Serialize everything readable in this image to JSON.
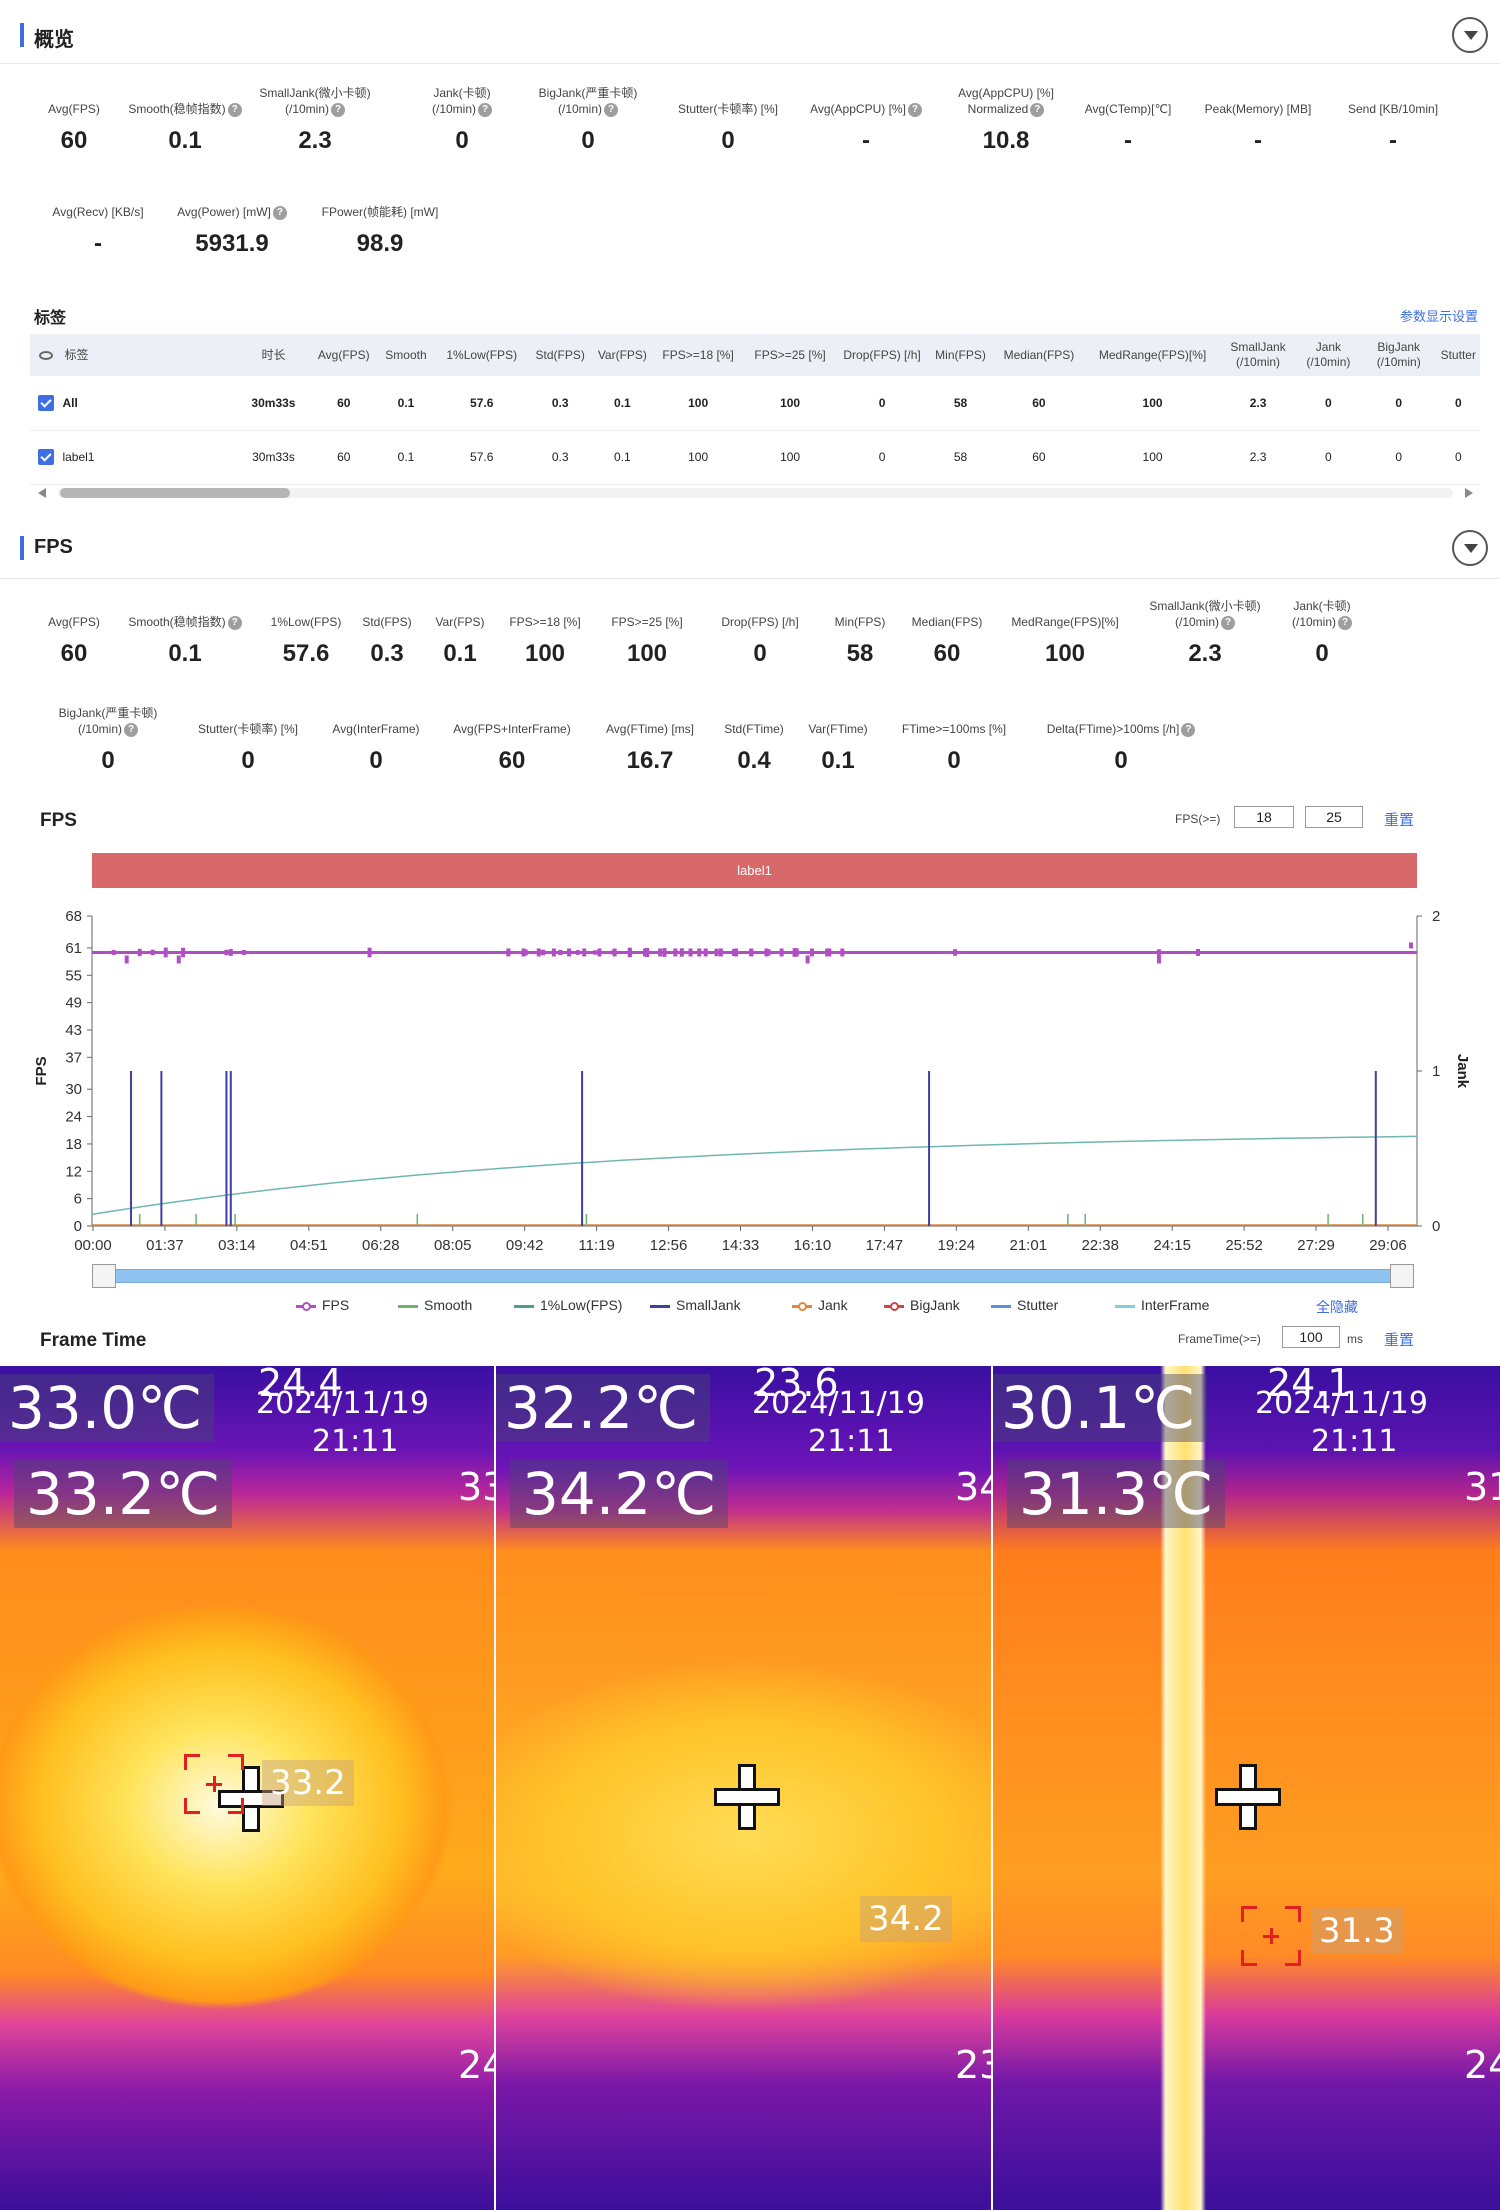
{
  "overview": {
    "title": "概览",
    "metrics_row1": [
      {
        "label": "Avg(FPS)",
        "value": "60",
        "help": false
      },
      {
        "label": "Smooth(稳帧指数)",
        "value": "0.1",
        "help": true
      },
      {
        "label": "SmallJank(微小卡顿)\n(/10min)",
        "value": "2.3",
        "help": true
      },
      {
        "label": "Jank(卡顿)\n(/10min)",
        "value": "0",
        "help": true
      },
      {
        "label": "BigJank(严重卡顿)\n(/10min)",
        "value": "0",
        "help": true
      },
      {
        "label": "Stutter(卡顿率) [%]",
        "value": "0",
        "help": false
      },
      {
        "label": "Avg(AppCPU) [%]",
        "value": "-",
        "help": true
      },
      {
        "label": "Avg(AppCPU) [%]\nNormalized",
        "value": "10.8",
        "help": true
      },
      {
        "label": "Avg(CTemp)[℃]",
        "value": "-",
        "help": false
      },
      {
        "label": "Peak(Memory) [MB]",
        "value": "-",
        "help": false
      },
      {
        "label": "Send [KB/10min]",
        "value": "-",
        "help": false
      }
    ],
    "metrics_row2": [
      {
        "label": "Avg(Recv) [KB/s]",
        "value": "-",
        "help": false
      },
      {
        "label": "Avg(Power) [mW]",
        "value": "5931.9",
        "help": true
      },
      {
        "label": "FPower(帧能耗) [mW]",
        "value": "98.9",
        "help": false
      }
    ]
  },
  "tags": {
    "title": "标签",
    "settings_link": "参数显示设置",
    "columns": [
      "标签",
      "时长",
      "Avg(FPS)",
      "Smooth",
      "1%Low(FPS)",
      "Std(FPS)",
      "Var(FPS)",
      "FPS>=18 [%]",
      "FPS>=25 [%]",
      "Drop(FPS) [/h]",
      "Min(FPS)",
      "Median(FPS)",
      "MedRange(FPS)[%]",
      "SmallJank\n(/10min)",
      "Jank\n(/10min)",
      "BigJank\n(/10min)",
      "Stutter"
    ],
    "rows": [
      [
        "All",
        "30m33s",
        "60",
        "0.1",
        "57.6",
        "0.3",
        "0.1",
        "100",
        "100",
        "0",
        "58",
        "60",
        "100",
        "2.3",
        "0",
        "0",
        "0"
      ],
      [
        "label1",
        "30m33s",
        "60",
        "0.1",
        "57.6",
        "0.3",
        "0.1",
        "100",
        "100",
        "0",
        "58",
        "60",
        "100",
        "2.3",
        "0",
        "0",
        "0"
      ]
    ]
  },
  "fps_section": {
    "title": "FPS",
    "metrics_row1": [
      {
        "label": "Avg(FPS)",
        "value": "60",
        "help": false
      },
      {
        "label": "Smooth(稳帧指数)",
        "value": "0.1",
        "help": true
      },
      {
        "label": "1%Low(FPS)",
        "value": "57.6",
        "help": false
      },
      {
        "label": "Std(FPS)",
        "value": "0.3",
        "help": false
      },
      {
        "label": "Var(FPS)",
        "value": "0.1",
        "help": false
      },
      {
        "label": "FPS>=18 [%]",
        "value": "100",
        "help": false
      },
      {
        "label": "FPS>=25 [%]",
        "value": "100",
        "help": false
      },
      {
        "label": "Drop(FPS) [/h]",
        "value": "0",
        "help": false
      },
      {
        "label": "Min(FPS)",
        "value": "58",
        "help": false
      },
      {
        "label": "Median(FPS)",
        "value": "60",
        "help": false
      },
      {
        "label": "MedRange(FPS)[%]",
        "value": "100",
        "help": false
      },
      {
        "label": "SmallJank(微小卡顿)\n(/10min)",
        "value": "2.3",
        "help": true
      },
      {
        "label": "Jank(卡顿)\n(/10min)",
        "value": "0",
        "help": true
      }
    ],
    "metrics_row2": [
      {
        "label": "BigJank(严重卡顿)\n(/10min)",
        "value": "0",
        "help": true
      },
      {
        "label": "Stutter(卡顿率) [%]",
        "value": "0",
        "help": false
      },
      {
        "label": "Avg(InterFrame)",
        "value": "0",
        "help": false
      },
      {
        "label": "Avg(FPS+InterFrame)",
        "value": "60",
        "help": false
      },
      {
        "label": "Avg(FTime) [ms]",
        "value": "16.7",
        "help": false
      },
      {
        "label": "Std(FTime)",
        "value": "0.4",
        "help": false
      },
      {
        "label": "Var(FTime)",
        "value": "0.1",
        "help": false
      },
      {
        "label": "FTime>=100ms [%]",
        "value": "0",
        "help": false
      },
      {
        "label": "Delta(FTime)>100ms [/h]",
        "value": "0",
        "help": true
      }
    ]
  },
  "fps_chart": {
    "title": "FPS",
    "threshold_label": "FPS(>=)",
    "threshold1": "18",
    "threshold2": "25",
    "reset": "重置",
    "band_label": "label1",
    "hide_all": "全隐藏"
  },
  "chart_data": {
    "type": "line",
    "title": "FPS",
    "ylabel": "FPS",
    "y2label": "Jank",
    "y_ticks": [
      "68",
      "61",
      "55",
      "49",
      "43",
      "37",
      "30",
      "24",
      "18",
      "12",
      "6",
      "0"
    ],
    "y2_ticks": [
      "2",
      "1",
      "0"
    ],
    "x_ticks": [
      "00:00",
      "01:37",
      "03:14",
      "04:51",
      "06:28",
      "08:05",
      "09:42",
      "11:19",
      "12:56",
      "14:33",
      "16:10",
      "17:47",
      "19:24",
      "21:01",
      "22:38",
      "24:15",
      "25:52",
      "27:29",
      "29:06"
    ],
    "ylim": [
      0,
      68
    ],
    "y2lim": [
      0,
      2
    ],
    "series": [
      {
        "name": "FPS",
        "color": "#b04fc4",
        "approx_value": 60
      },
      {
        "name": "Smooth",
        "color": "#6cb36c"
      },
      {
        "name": "1%Low(FPS)",
        "color": "#4d9e8a"
      },
      {
        "name": "SmallJank",
        "color": "#3f3fa6",
        "spike_times_min": [
          0.9,
          1.6,
          3.1,
          3.2,
          11.3,
          19.3,
          29.6
        ]
      },
      {
        "name": "Jank",
        "color": "#e0883c"
      },
      {
        "name": "BigJank",
        "color": "#c84848"
      },
      {
        "name": "Stutter",
        "color": "#5b8fe0"
      },
      {
        "name": "InterFrame",
        "color": "#7fd0df"
      }
    ]
  },
  "frame_time": {
    "title": "Frame Time",
    "threshold_label": "FrameTime(>=)",
    "threshold": "100",
    "unit": "ms",
    "reset": "重置"
  },
  "thermal": [
    {
      "max": "33.0℃",
      "center": "33.2℃",
      "date": "2024/11/19",
      "time": "21:11",
      "spot": "33.2",
      "top_edge": "24.4",
      "edge1": "33",
      "edge2": "24"
    },
    {
      "max": "32.2℃",
      "center": "34.2℃",
      "date": "2024/11/19",
      "time": "21:11",
      "spot": "34.2",
      "top_edge": "23.6",
      "edge1": "34",
      "edge2": "23"
    },
    {
      "max": "30.1℃",
      "center": "31.3℃",
      "date": "2024/11/19",
      "time": "21:11",
      "spot": "31.3",
      "top_edge": "24.1",
      "edge1": "31",
      "edge2": "24"
    }
  ]
}
